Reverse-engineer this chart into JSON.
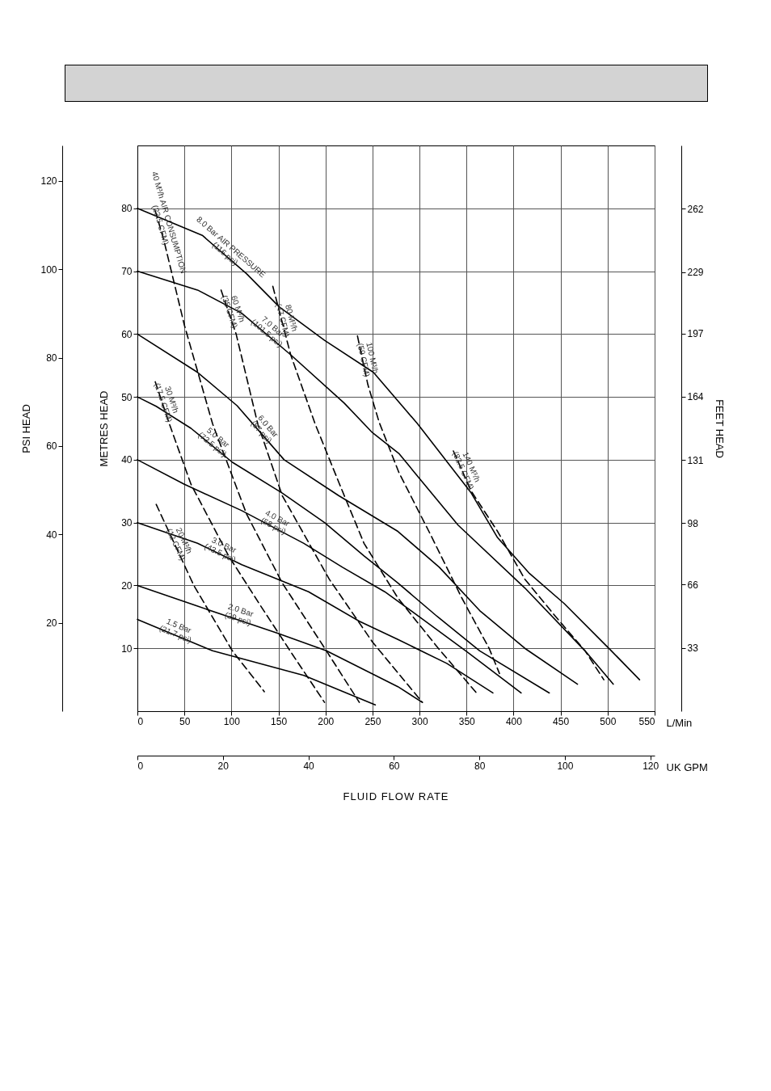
{
  "chart_data": {
    "type": "line",
    "xlabel": "L/Min",
    "x2label": "UK GPM",
    "ylabel": "METRES HEAD",
    "y2label": "FEET HEAD",
    "y3label": "PSI HEAD",
    "annotations": [
      "FLUID FLOW RATE"
    ],
    "xlim": [
      0,
      550
    ],
    "xticks": [
      0,
      50,
      100,
      150,
      200,
      250,
      300,
      350,
      400,
      450,
      500,
      550
    ],
    "x2lim": [
      0,
      121
    ],
    "x2ticks": [
      0,
      20,
      40,
      60,
      80,
      100,
      120
    ],
    "ylim": [
      0,
      90
    ],
    "yticks": [
      10,
      20,
      30,
      40,
      50,
      60,
      70,
      80
    ],
    "y2lim": [
      0,
      295
    ],
    "y2ticks": [
      33,
      66,
      98,
      131,
      164,
      197,
      229,
      262
    ],
    "y3lim": [
      0,
      128
    ],
    "y3ticks": [
      20,
      40,
      60,
      80,
      100,
      120
    ],
    "grid": true,
    "series": [
      {
        "name": "8.0 Bar AIR PRESSURE (116 psi)",
        "color": "#000000",
        "line_style": "solid",
        "x": [
          0,
          69,
          116,
          151,
          199,
          251,
          298,
          355,
          383,
          417,
          454,
          504,
          534
        ],
        "values": [
          80,
          75.7,
          69.6,
          64.3,
          59,
          53.9,
          45.7,
          34.7,
          27.6,
          21.9,
          17.1,
          9.6,
          5
        ]
      },
      {
        "name": "7.0 Bar (101.5 psi)",
        "color": "#000000",
        "line_style": "solid",
        "x": [
          0,
          64,
          111,
          163,
          220,
          250,
          278,
          341,
          412,
          476,
          506
        ],
        "values": [
          70,
          67,
          63.3,
          56.7,
          49,
          44.3,
          41,
          29.6,
          19.6,
          9.6,
          4.3
        ]
      },
      {
        "name": "6.0 Bar (87 psi)",
        "color": "#000000",
        "line_style": "solid",
        "x": [
          0,
          64,
          106,
          156,
          214,
          277,
          321,
          364,
          412,
          468
        ],
        "values": [
          60,
          53.9,
          48.6,
          40,
          34.3,
          28.6,
          22.9,
          16,
          10,
          4.3
        ]
      },
      {
        "name": "5.0 Bar (72.5 psi)",
        "color": "#000000",
        "line_style": "solid",
        "x": [
          0,
          20,
          57,
          101,
          154,
          199,
          241,
          277,
          317,
          364,
          438
        ],
        "values": [
          50,
          48.5,
          45,
          39.6,
          34.7,
          30,
          24.7,
          20.4,
          15.3,
          9.6,
          2.9
        ]
      },
      {
        "name": "4.0 Bar (58 psi)",
        "color": "#000000",
        "line_style": "solid",
        "x": [
          0,
          50,
          111,
          177,
          218,
          263,
          300,
          350,
          408
        ],
        "values": [
          40,
          36.1,
          31.9,
          26.7,
          22.9,
          19,
          15,
          9.5,
          2.9
        ]
      },
      {
        "name": "3.0 Bar (43.5 psi)",
        "color": "#000000",
        "line_style": "solid",
        "x": [
          0,
          64,
          111,
          182,
          236,
          277,
          329,
          378
        ],
        "values": [
          30,
          26.7,
          23.3,
          19,
          14.3,
          11.4,
          7.6,
          2.9
        ]
      },
      {
        "name": "2.0 Bar (29 psi)",
        "color": "#000000",
        "line_style": "solid",
        "x": [
          0,
          64,
          149,
          201,
          277,
          303
        ],
        "values": [
          20,
          16.7,
          12.4,
          9.6,
          3.9,
          1.4
        ]
      },
      {
        "name": "1.5 Bar (21.7 psi)",
        "color": "#000000",
        "line_style": "solid",
        "x": [
          0,
          80,
          177,
          253
        ],
        "values": [
          14.6,
          9.6,
          5.7,
          1
        ]
      },
      {
        "name": "20 M³/h (12 CFM)",
        "color": "#000000",
        "line_style": "dashed",
        "x": [
          20,
          60,
          101,
          135
        ],
        "values": [
          32.9,
          20,
          9.6,
          3.1
        ]
      },
      {
        "name": "30 M³/h (17.5 CFM)",
        "color": "#000000",
        "line_style": "dashed",
        "x": [
          19,
          34,
          57,
          97,
          130,
          165,
          199
        ],
        "values": [
          52.4,
          45.7,
          36.1,
          24.7,
          17,
          9,
          1.4
        ]
      },
      {
        "name": "40 M³/h AIR CONSUMPTION (23.5 CFM)",
        "color": "#000000",
        "line_style": "dashed",
        "x": [
          19,
          28,
          50,
          80,
          116,
          154,
          201,
          236
        ],
        "values": [
          79.6,
          75,
          61.4,
          45.7,
          31.4,
          20.4,
          9.6,
          1.4
        ]
      },
      {
        "name": "60 M³/h (35 CFM)",
        "color": "#000000",
        "line_style": "dashed",
        "x": [
          89,
          105,
          128,
          154,
          204,
          250,
          303
        ],
        "values": [
          67,
          60,
          45.7,
          34.3,
          21,
          11,
          1.4
        ]
      },
      {
        "name": "80 M³/h (47 CFM)",
        "color": "#000000",
        "line_style": "dashed",
        "x": [
          144,
          163,
          189,
          215,
          241,
          277,
          320,
          360
        ],
        "values": [
          67.6,
          56.7,
          45.7,
          36.1,
          26.7,
          18,
          10,
          3
        ]
      },
      {
        "name": "100 M³/h (59 CFM)",
        "color": "#000000",
        "line_style": "dashed",
        "x": [
          234,
          245,
          257,
          278,
          312,
          345,
          374,
          385
        ],
        "values": [
          59.7,
          52,
          46,
          38,
          28,
          18,
          10,
          6
        ]
      },
      {
        "name": "140 M³/h (82.5 CFM)",
        "color": "#000000",
        "line_style": "dashed",
        "x": [
          336,
          355,
          383,
          412,
          445,
          476,
          496
        ],
        "values": [
          41.4,
          35,
          28.6,
          21,
          15,
          9.6,
          5
        ]
      }
    ]
  }
}
